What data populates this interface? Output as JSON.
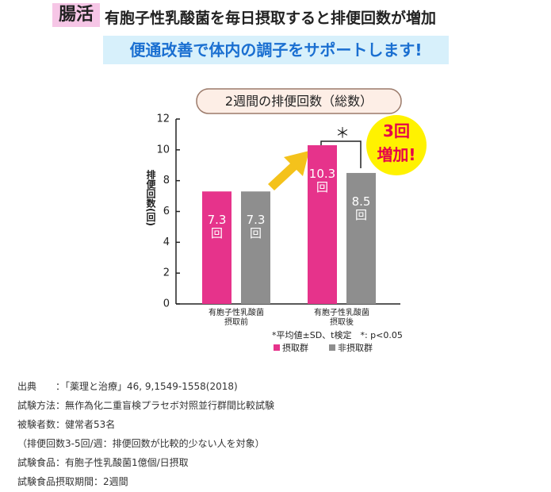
{
  "header": {
    "tag": "腸活",
    "headline": "有胞子性乳酸菌を毎日摂取すると排便回数が増加",
    "subheadline": "便通改善で体内の調子をサポートします!"
  },
  "chart_data": {
    "type": "bar",
    "title": "2週間の排便回数（総数）",
    "y_label": "排便回数(回)",
    "categories": [
      "有胞子性乳酸菌\n摂取前",
      "有胞子性乳酸菌\n摂取後"
    ],
    "series": [
      {
        "name": "摂取群",
        "color": "#e6338b",
        "values": [
          7.3,
          10.3
        ],
        "value_labels": [
          "7.3\n回",
          "10.3\n回"
        ]
      },
      {
        "name": "非摂取群",
        "color": "#8e8e8e",
        "values": [
          7.3,
          8.5
        ],
        "value_labels": [
          "7.3\n回",
          "8.5\n回"
        ]
      }
    ],
    "ylim": [
      0,
      12
    ],
    "yticks": [
      0,
      2,
      4,
      6,
      8,
      10,
      12
    ],
    "grid": false,
    "significance": "＊",
    "callout": "3回\n増加!",
    "footnote": "*平均値±SD、t検定　*: p<0.05"
  },
  "notes": [
    "出典　　：「薬理と治療」46, 9,1549-1558(2018)",
    "試験方法：無作為化二重盲検プラセボ対照並行群間比較試験",
    "被験者数：健常者53名",
    "（排便回数3-5回/週：排便回数が比較的少ない人を対象）",
    "試験食品：有胞子性乳酸菌1億個/日摂取",
    "試験食品摂取期間：2週間"
  ]
}
